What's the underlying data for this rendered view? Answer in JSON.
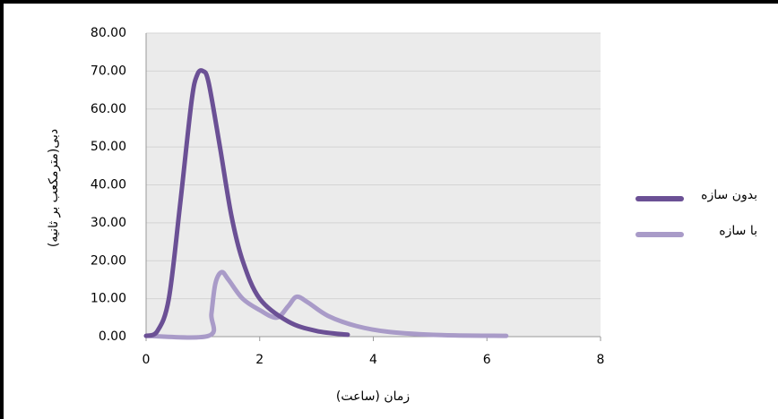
{
  "chart_data": {
    "type": "line",
    "x_label": "زمان (ساعت)",
    "y_label": "دبی(مترمکعب بر ثانیه)",
    "xlim": [
      0,
      8
    ],
    "xticks": [
      0,
      2,
      4,
      6,
      8
    ],
    "ylim": [
      0,
      80
    ],
    "yticks": [
      {
        "value": 0,
        "label": "0.00"
      },
      {
        "value": 10,
        "label": "10.00"
      },
      {
        "value": 20,
        "label": "20.00"
      },
      {
        "value": 30,
        "label": "30.00"
      },
      {
        "value": 40,
        "label": "40.00"
      },
      {
        "value": 50,
        "label": "50.00"
      },
      {
        "value": 60,
        "label": "60.00"
      },
      {
        "value": 70,
        "label": "70.00"
      },
      {
        "value": 80,
        "label": "80.00"
      }
    ],
    "grid": true,
    "legend": "right",
    "series": [
      {
        "name": "بدون سازه",
        "color": "#6b5095",
        "x": [
          0,
          0.2,
          0.4,
          0.6,
          0.8,
          0.9,
          1.0,
          1.1,
          1.3,
          1.5,
          1.7,
          2.0,
          2.5,
          3.0,
          3.55
        ],
        "values": [
          0.2,
          1.5,
          10,
          35,
          62,
          69,
          70,
          67,
          50,
          32,
          20,
          10,
          4,
          1.5,
          0.5
        ]
      },
      {
        "name": "با سازه",
        "color": "#a99bc8",
        "x": [
          0,
          1.1,
          1.15,
          1.22,
          1.33,
          1.45,
          1.7,
          2.0,
          2.3,
          2.5,
          2.65,
          2.85,
          3.2,
          3.7,
          4.3,
          5.2,
          6.34
        ],
        "values": [
          0.2,
          0.2,
          6,
          14,
          17,
          15,
          10,
          7,
          5,
          8,
          10.5,
          9,
          5.5,
          2.8,
          1.2,
          0.4,
          0.2
        ]
      }
    ]
  }
}
